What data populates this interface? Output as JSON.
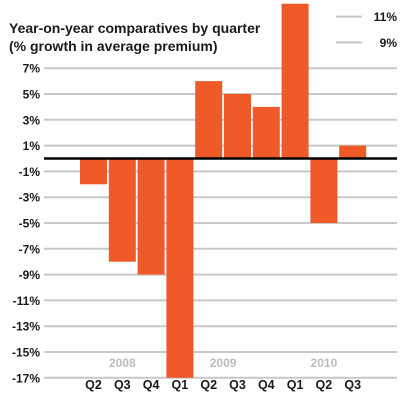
{
  "chart_data": {
    "type": "bar",
    "title_lines": [
      "Year-on-year comparatives by quarter",
      "(% growth in average premium)"
    ],
    "categories": [
      "Q2",
      "Q3",
      "Q4",
      "Q1",
      "Q2",
      "Q3",
      "Q4",
      "Q1",
      "Q2",
      "Q3"
    ],
    "years": [
      {
        "label": "2008",
        "from": 0,
        "to": 2
      },
      {
        "label": "2009",
        "from": 3,
        "to": 6
      },
      {
        "label": "2010",
        "from": 7,
        "to": 9
      }
    ],
    "values": [
      -2,
      -8,
      -9,
      -17,
      6,
      5,
      4,
      12,
      -5,
      1
    ],
    "y_ticks": [
      11,
      9,
      7,
      5,
      3,
      1,
      -1,
      -3,
      -5,
      -7,
      -9,
      -11,
      -13,
      -15,
      -17
    ],
    "y_tick_labels": [
      "11%",
      "9%",
      "7%",
      "5%",
      "3%",
      "1%",
      "-1%",
      "-3%",
      "-5%",
      "-7%",
      "-9%",
      "-11%",
      "-13%",
      "-15%",
      "-17%"
    ],
    "ylim": [
      -17,
      12
    ],
    "bar_color": "#ef5a28",
    "grid_color": "#c8c8c8",
    "zero_line_color": "#000000",
    "grid": true
  }
}
